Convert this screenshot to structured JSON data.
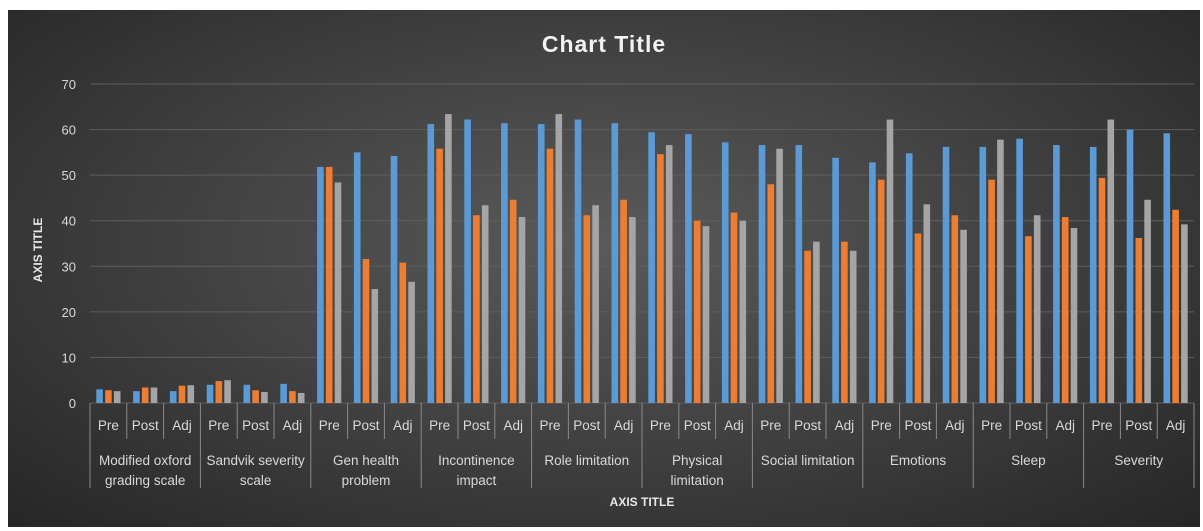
{
  "chart_data": {
    "type": "bar",
    "title": "Chart Title",
    "xlabel": "AXIS TITLE",
    "ylabel": "AXIS TITLE",
    "ylim": [
      0,
      70
    ],
    "yticks": [
      0,
      10,
      20,
      30,
      40,
      50,
      60,
      70
    ],
    "grid": true,
    "legend": "none",
    "groups": [
      {
        "label": "Modified oxford grading scale",
        "label_lines": [
          "Modified oxford",
          "grading scale"
        ],
        "subcategories": [
          "Pre",
          "Post",
          "Adj"
        ],
        "values": [
          [
            3.0,
            2.8,
            2.6
          ],
          [
            2.6,
            3.4,
            3.4
          ],
          [
            2.6,
            3.8,
            3.9
          ]
        ]
      },
      {
        "label": "Sandvik severity scale",
        "label_lines": [
          "Sandvik severity",
          "scale"
        ],
        "subcategories": [
          "Pre",
          "Post",
          "Adj"
        ],
        "values": [
          [
            4.0,
            4.8,
            5.0
          ],
          [
            4.0,
            2.8,
            2.4
          ],
          [
            4.2,
            2.6,
            2.2
          ]
        ]
      },
      {
        "label": "Gen health problem",
        "label_lines": [
          "Gen health",
          "problem"
        ],
        "subcategories": [
          "Pre",
          "Post",
          "Adj"
        ],
        "values": [
          [
            51.8,
            51.8,
            48.4
          ],
          [
            55.0,
            31.6,
            25.0
          ],
          [
            54.2,
            30.8,
            26.6
          ]
        ]
      },
      {
        "label": "Incontinence impact",
        "label_lines": [
          "Incontinence",
          "impact"
        ],
        "subcategories": [
          "Pre",
          "Post",
          "Adj"
        ],
        "values": [
          [
            61.2,
            55.8,
            63.4
          ],
          [
            62.2,
            41.2,
            43.4
          ],
          [
            61.4,
            44.6,
            40.8
          ]
        ]
      },
      {
        "label": "Role limitation",
        "label_lines": [
          "Role limitation"
        ],
        "subcategories": [
          "Pre",
          "Post",
          "Adj"
        ],
        "values": [
          [
            61.2,
            55.8,
            63.4
          ],
          [
            62.2,
            41.2,
            43.4
          ],
          [
            61.4,
            44.6,
            40.8
          ]
        ]
      },
      {
        "label": "Physical limitation",
        "label_lines": [
          "Physical",
          "limitation"
        ],
        "subcategories": [
          "Pre",
          "Post",
          "Adj"
        ],
        "values": [
          [
            59.4,
            54.6,
            56.6
          ],
          [
            59.0,
            40.0,
            38.8
          ],
          [
            57.2,
            41.8,
            40.0
          ]
        ]
      },
      {
        "label": "Social limitation",
        "label_lines": [
          "Social limitation"
        ],
        "subcategories": [
          "Pre",
          "Post",
          "Adj"
        ],
        "values": [
          [
            56.6,
            48.0,
            55.8
          ],
          [
            56.6,
            33.4,
            35.4
          ],
          [
            53.8,
            35.4,
            33.4
          ]
        ]
      },
      {
        "label": "Emotions",
        "label_lines": [
          "Emotions"
        ],
        "subcategories": [
          "Pre",
          "Post",
          "Adj"
        ],
        "values": [
          [
            52.8,
            49.0,
            62.2
          ],
          [
            54.8,
            37.2,
            43.6
          ],
          [
            56.2,
            41.2,
            38.0
          ]
        ]
      },
      {
        "label": "Sleep",
        "label_lines": [
          "Sleep"
        ],
        "subcategories": [
          "Pre",
          "Post",
          "Adj"
        ],
        "values": [
          [
            56.2,
            49.0,
            57.8
          ],
          [
            58.0,
            36.6,
            41.2
          ],
          [
            56.6,
            40.8,
            38.4
          ]
        ]
      },
      {
        "label": "Severity",
        "label_lines": [
          "Severity"
        ],
        "subcategories": [
          "Pre",
          "Post",
          "Adj"
        ],
        "values": [
          [
            56.2,
            49.4,
            62.2
          ],
          [
            60.0,
            36.2,
            44.6
          ],
          [
            59.2,
            42.4,
            39.2
          ]
        ]
      }
    ],
    "bar_colors": [
      "#5b9bd5",
      "#ed7d31",
      "#a5a5a5"
    ]
  }
}
